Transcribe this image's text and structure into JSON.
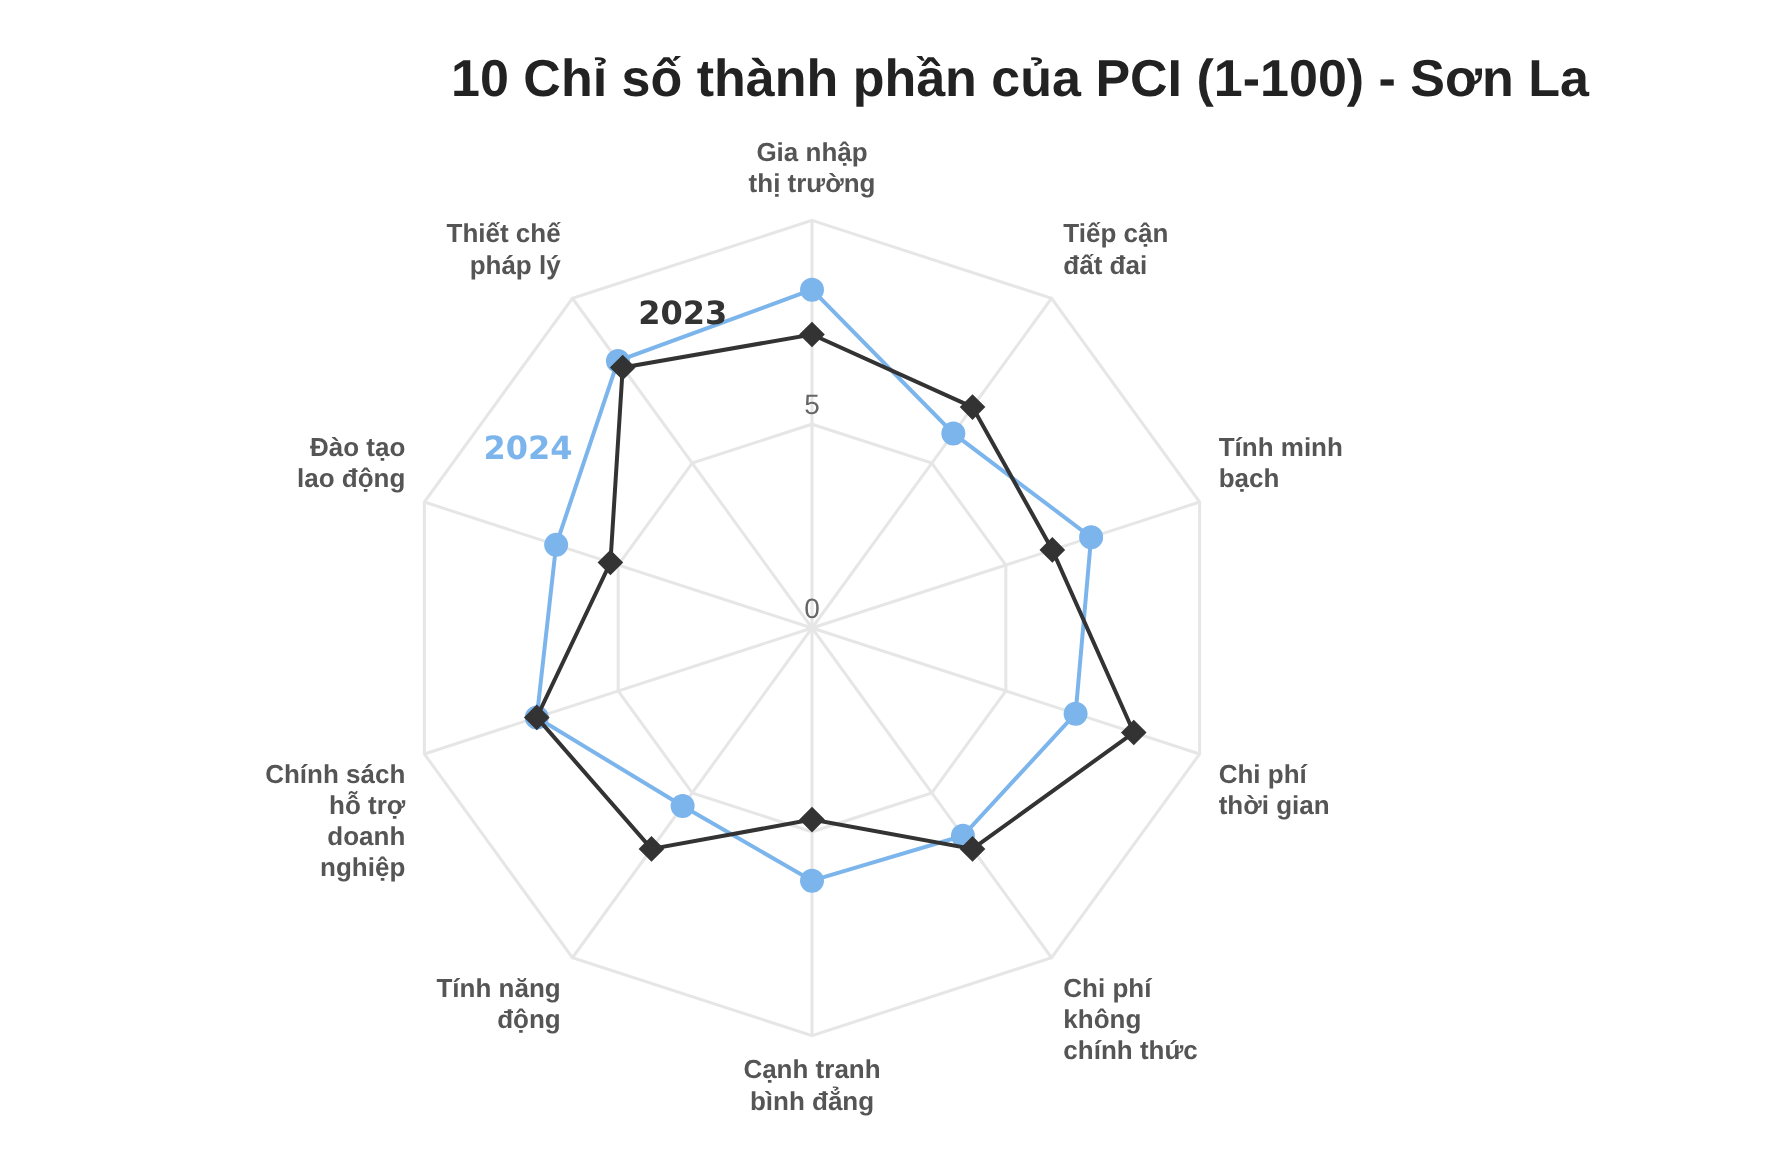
{
  "chart_data": {
    "type": "radar",
    "title": "10 Chỉ số thành phần của PCI (1-100) - Sơn La",
    "categories": [
      "Gia nhập thị trường",
      "Tiếp cận đất đai",
      "Tính minh bạch",
      "Chi phí thời gian",
      "Chi phí không chính thức",
      "Cạnh tranh bình đẳng",
      "Tính năng động",
      "Chính sách hỗ trợ doanh nghiệp",
      "Đào tạo lao động",
      "Thiết chế pháp lý"
    ],
    "series": [
      {
        "name": "2023",
        "color": "#333333",
        "marker": "diamond",
        "values": [
          7.2,
          6.7,
          6.2,
          8.3,
          6.7,
          4.7,
          6.7,
          7.1,
          5.2,
          7.9
        ]
      },
      {
        "name": "2024",
        "color": "#7cb5ec",
        "marker": "circle",
        "values": [
          8.3,
          5.9,
          7.2,
          6.8,
          6.3,
          6.2,
          5.4,
          7.1,
          6.6,
          8.1
        ]
      }
    ],
    "ylim": [
      0,
      10
    ],
    "yticks": [
      0,
      5
    ],
    "grid": true,
    "legend": false
  }
}
